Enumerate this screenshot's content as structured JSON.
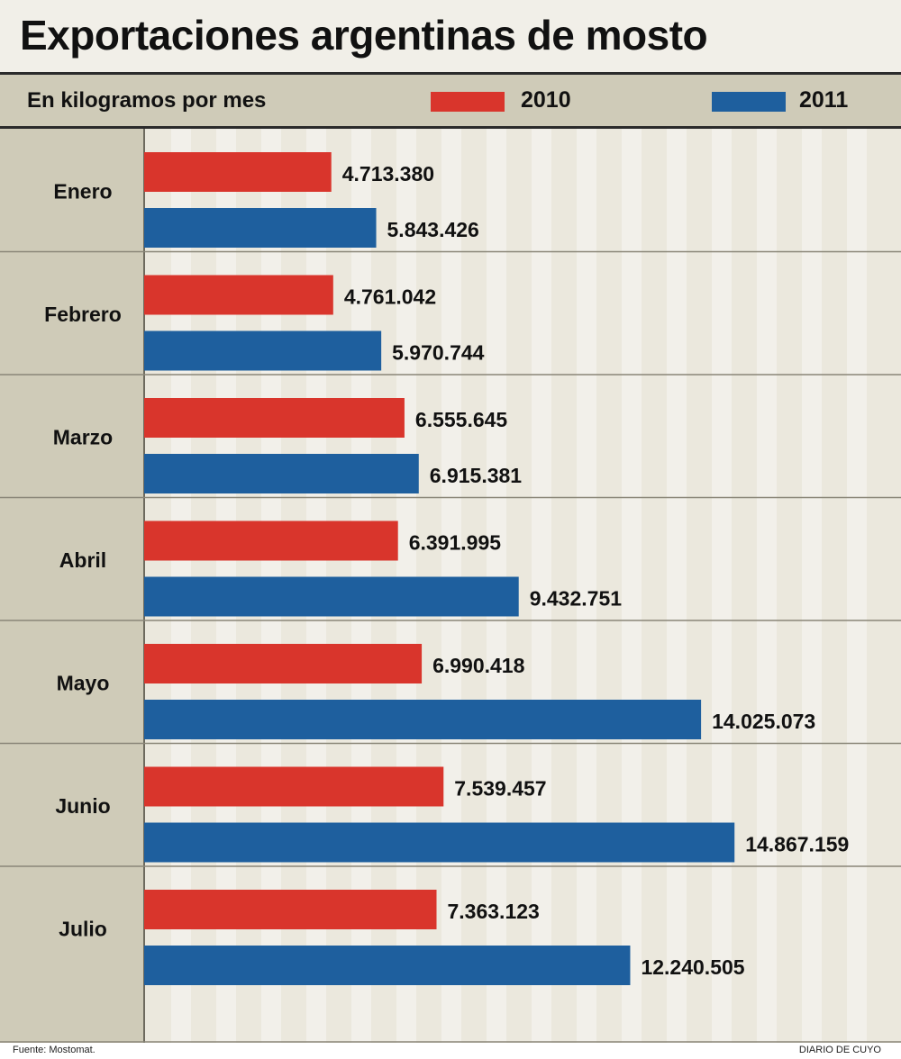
{
  "title": "Exportaciones argentinas de mosto",
  "subtitle": "En kilogramos por mes",
  "source": "Fuente: Mostomat.",
  "brand": "DIARIO DE CUYO",
  "colors": {
    "series_2010": "#d9352c",
    "series_2011": "#1e5f9e",
    "band_dark": "#cfcbb8",
    "band_light": "#ebe8dd",
    "grid_light": "#f2f0ea"
  },
  "chart_data": {
    "type": "bar",
    "orientation": "horizontal",
    "title": "Exportaciones argentinas de mosto",
    "subtitle": "En kilogramos por mes",
    "categories": [
      "Enero",
      "Febrero",
      "Marzo",
      "Abril",
      "Mayo",
      "Junio",
      "Julio"
    ],
    "series": [
      {
        "name": "2010",
        "color": "#d9352c",
        "values": [
          4713380,
          4761042,
          6555645,
          6391995,
          6990418,
          7539457,
          7363123
        ],
        "labels": [
          "4.713.380",
          "4.761.042",
          "6.555.645",
          "6.391.995",
          "6.990.418",
          "7.539.457",
          "7.363.123"
        ]
      },
      {
        "name": "2011",
        "color": "#1e5f9e",
        "values": [
          5843426,
          5970744,
          6915381,
          9432751,
          14025073,
          14867159,
          12240505
        ],
        "labels": [
          "5.843.426",
          "5.970.744",
          "6.915.381",
          "9.432.751",
          "14.025.073",
          "14.867.159",
          "12.240.505"
        ]
      }
    ],
    "xlim": [
      0,
      18000000
    ],
    "legend_position": "top",
    "grid": true
  }
}
